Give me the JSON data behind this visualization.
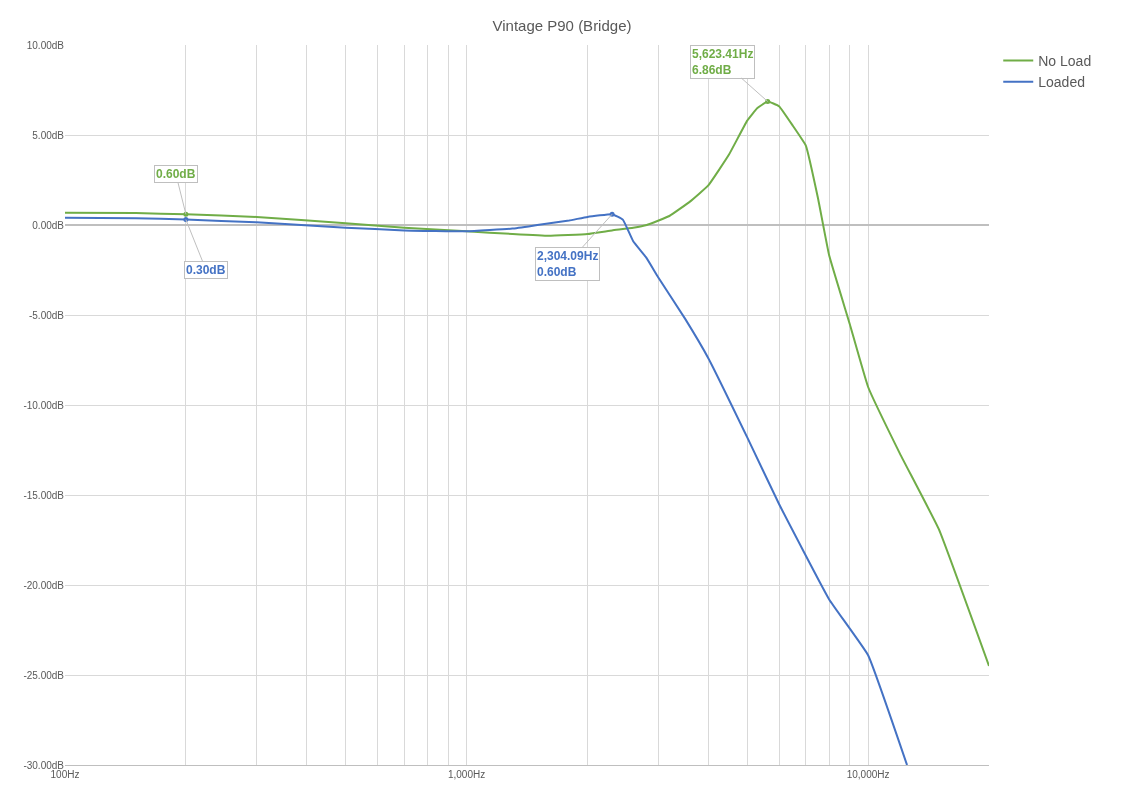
{
  "chart_data": {
    "type": "line",
    "title": "Vintage P90 (Bridge)",
    "series": [
      {
        "name": "No Load",
        "color": "#70ad47",
        "x": [
          100,
          150,
          200,
          300,
          500,
          700,
          1000,
          1300,
          1600,
          2000,
          2304,
          2600,
          2810,
          3200,
          3600,
          4000,
          4500,
          5000,
          5300,
          5623,
          6000,
          6500,
          7000,
          7500,
          8000,
          9000,
          10000,
          12000,
          15000,
          20000
        ],
        "values": [
          0.68,
          0.66,
          0.6,
          0.45,
          0.1,
          -0.15,
          -0.35,
          -0.5,
          -0.6,
          -0.5,
          -0.3,
          -0.15,
          0,
          0.5,
          1.3,
          2.2,
          3.9,
          5.8,
          6.5,
          6.86,
          6.6,
          5.5,
          4.4,
          1.5,
          -1.7,
          -5.5,
          -9.0,
          -12.7,
          -16.9,
          -24.5
        ]
      },
      {
        "name": "Loaded",
        "color": "#4472c4",
        "x": [
          100,
          150,
          200,
          300,
          500,
          700,
          1000,
          1300,
          1500,
          1800,
          2000,
          2304,
          2450,
          2600,
          2800,
          3000,
          3500,
          4000,
          5000,
          6000,
          8000,
          10000,
          12500
        ],
        "values": [
          0.4,
          0.38,
          0.3,
          0.15,
          -0.15,
          -0.3,
          -0.35,
          -0.2,
          0,
          0.25,
          0.45,
          0.6,
          0.3,
          -0.9,
          -1.8,
          -2.9,
          -5.2,
          -7.4,
          -11.8,
          -15.5,
          -20.8,
          -23.9,
          -30
        ]
      }
    ],
    "annotations": [
      {
        "text": "0.60dB",
        "x": 200,
        "y": 0.6
      },
      {
        "text": "0.30dB",
        "x": 200,
        "y": 0.3
      },
      {
        "text": "5,623.41Hz\n6.86dB",
        "x": 5623,
        "y": 6.86
      },
      {
        "text": "2,304.09Hz\n0.60dB",
        "x": 2304,
        "y": 0.6
      }
    ],
    "log": "x",
    "xlim": [
      100,
      20000
    ],
    "xticks": [
      {
        "value": 100,
        "label": "100Hz"
      },
      {
        "value": 200,
        "label": null
      },
      {
        "value": 300,
        "label": null
      },
      {
        "value": 400,
        "label": null
      },
      {
        "value": 500,
        "label": null
      },
      {
        "value": 600,
        "label": null
      },
      {
        "value": 700,
        "label": null
      },
      {
        "value": 800,
        "label": null
      },
      {
        "value": 900,
        "label": null
      },
      {
        "value": 1000,
        "label": "1,000Hz"
      },
      {
        "value": 2000,
        "label": null
      },
      {
        "value": 3000,
        "label": null
      },
      {
        "value": 4000,
        "label": null
      },
      {
        "value": 5000,
        "label": null
      },
      {
        "value": 6000,
        "label": null
      },
      {
        "value": 7000,
        "label": null
      },
      {
        "value": 8000,
        "label": null
      },
      {
        "value": 9000,
        "label": null
      },
      {
        "value": 10000,
        "label": "10,000Hz"
      }
    ],
    "ylim": [
      -30,
      10
    ],
    "yticks": [
      {
        "value": 10,
        "label": "10.00dB"
      },
      {
        "value": 5,
        "label": "5.00dB"
      },
      {
        "value": 0,
        "label": "0.00dB"
      },
      {
        "value": -5,
        "label": "-5.00dB"
      },
      {
        "value": -10,
        "label": "-10.00dB"
      },
      {
        "value": -15,
        "label": "-15.00dB"
      },
      {
        "value": -20,
        "label": "-20.00dB"
      },
      {
        "value": -25,
        "label": "-25.00dB"
      },
      {
        "value": -30,
        "label": "-30.00dB"
      }
    ],
    "grid": true,
    "legend": "right",
    "marker": "none",
    "line_style": "solid"
  }
}
